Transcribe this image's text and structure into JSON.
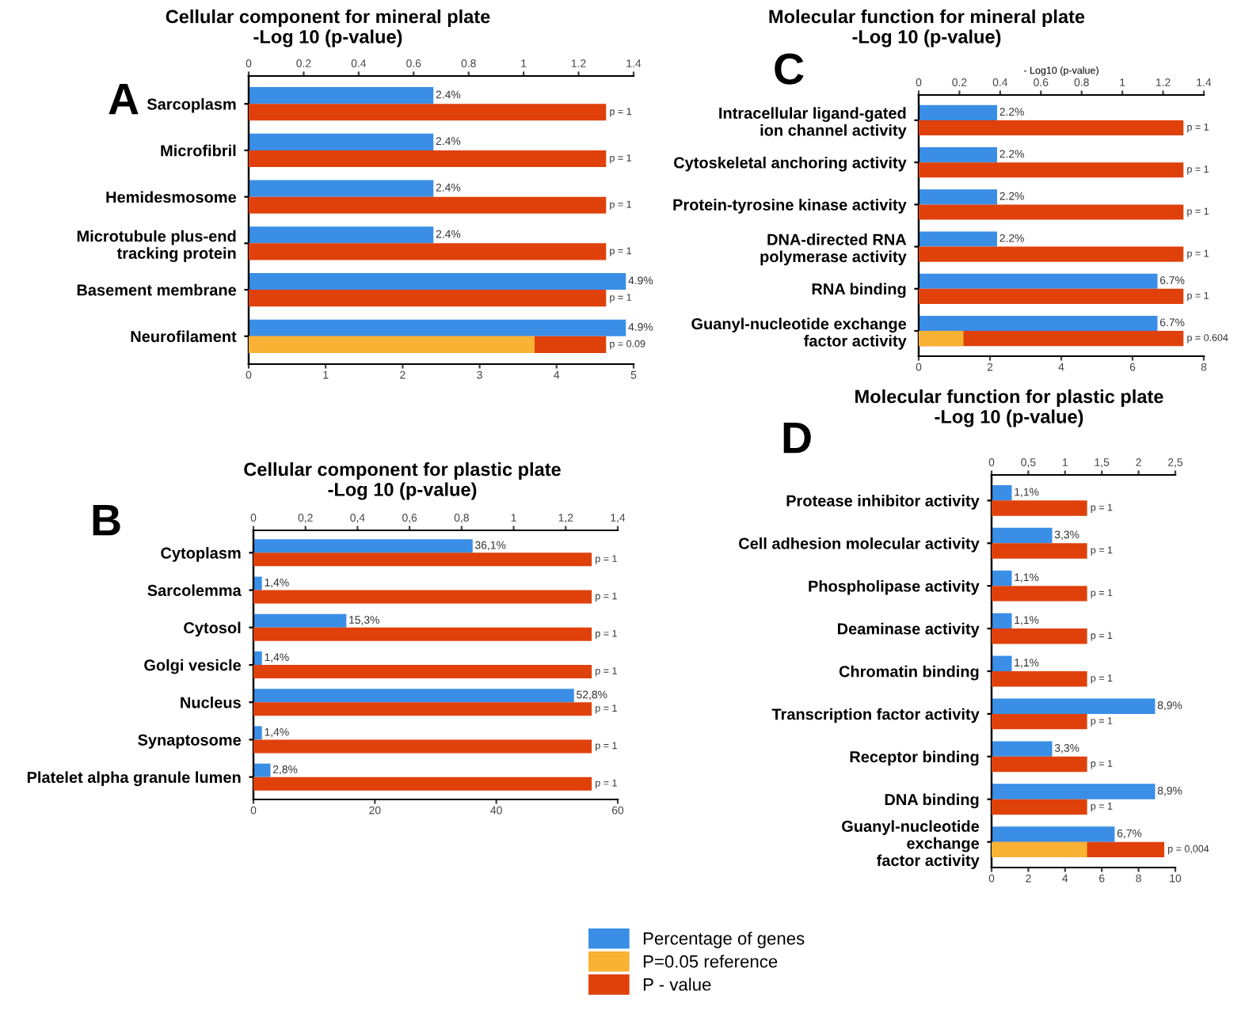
{
  "chart_data": [
    {
      "type": "bar",
      "orientation": "horizontal",
      "title": "Cellular component for mineral plate\n-Log 10 (p-value)",
      "annotations": [
        "A",
        "p = 1",
        "p = 1",
        "p = 1",
        "p = 1",
        "p = 1",
        "p = 0.09"
      ],
      "categories": [
        "Sarcoplasm",
        "Microfibril",
        "Hemidesmosome",
        "Microtubule plus-end\ntracking protein",
        "Basement membrane",
        "Neurofilament"
      ],
      "xlim": [
        0,
        5
      ],
      "xticks": [
        0,
        1,
        2,
        3,
        4,
        5
      ],
      "x2lim": [
        0,
        1.4
      ],
      "x2ticks": [
        0,
        0.2,
        0.4,
        0.6,
        0.8,
        1,
        1.2,
        1.4
      ],
      "series": [
        {
          "color": "#3a8ee6",
          "values": [
            2.4,
            2.4,
            2.4,
            2.4,
            4.9,
            4.9
          ],
          "value_labels": [
            "2.4%",
            "2.4%",
            "2.4%",
            "2.4%",
            "4.9%",
            "4.9%"
          ]
        },
        {
          "color": "#f9b233",
          "axis": "x2",
          "values": [
            null,
            null,
            null,
            null,
            null,
            1.04
          ]
        },
        {
          "color": "#e0400a",
          "axis": "x2",
          "values": [
            1.3,
            1.3,
            1.3,
            1.3,
            1.3,
            1.3
          ]
        }
      ]
    },
    {
      "type": "bar",
      "orientation": "horizontal",
      "title": "Cellular component for plastic plate\n-Log 10 (p-value)",
      "annotations": [
        "B",
        "p = 1",
        "p = 1",
        "p = 1",
        "p = 1",
        "p = 1",
        "p = 1",
        "p = 1"
      ],
      "categories": [
        "Cytoplasm",
        "Sarcolemma",
        "Cytosol",
        "Golgi vesicle",
        "Nucleus",
        "Synaptosome",
        "Platelet alpha granule lumen"
      ],
      "xlim": [
        0,
        60
      ],
      "xticks": [
        0,
        20,
        40,
        60
      ],
      "x2lim": [
        0,
        1.4
      ],
      "x2ticks": [
        0,
        {
          "value": 0.2,
          "label": "0,2"
        },
        {
          "value": 0.4,
          "label": "0,4"
        },
        {
          "value": 0.6,
          "label": "0,6"
        },
        {
          "value": 0.8,
          "label": "0,8"
        },
        1,
        {
          "value": 1.2,
          "label": "1,2"
        },
        {
          "value": 1.4,
          "label": "1,4"
        }
      ],
      "series": [
        {
          "color": "#3a8ee6",
          "values": [
            36.1,
            1.4,
            15.3,
            1.4,
            52.8,
            1.4,
            2.8
          ],
          "value_labels": [
            "36,1%",
            "1,4%",
            "15,3%",
            "1,4%",
            "52,8%",
            "1,4%",
            "2,8%"
          ]
        },
        {
          "color": "#e0400a",
          "axis": "x2",
          "values": [
            1.3,
            1.3,
            1.3,
            1.3,
            1.3,
            1.3,
            1.3
          ]
        }
      ]
    },
    {
      "type": "bar",
      "orientation": "horizontal",
      "title": "Molecular function for mineral plate\n-Log 10 (p-value)",
      "x2label": "- Log10 (p-value)",
      "annotations": [
        "C",
        "p = 1",
        "p = 1",
        "p = 1",
        "p = 1",
        "p = 1",
        "p = 0.604"
      ],
      "categories": [
        "Intracellular ligand-gated\nion channel activity",
        "Cytoskeletal anchoring activity",
        "Protein-tyrosine kinase activity",
        "DNA-directed RNA\npolymerase activity",
        "RNA binding",
        "Guanyl-nucleotide exchange\nfactor activity"
      ],
      "xlim": [
        0,
        8
      ],
      "xticks": [
        0,
        2,
        4,
        6,
        8
      ],
      "x2lim": [
        0,
        1.4
      ],
      "x2ticks": [
        0,
        0.2,
        0.4,
        0.6,
        0.8,
        1,
        1.2,
        1.4
      ],
      "series": [
        {
          "color": "#3a8ee6",
          "values": [
            2.2,
            2.2,
            2.2,
            2.2,
            6.7,
            6.7
          ],
          "value_labels": [
            "2.2%",
            "2.2%",
            "2.2%",
            "2.2%",
            "6.7%",
            "6.7%"
          ]
        },
        {
          "color": "#f9b233",
          "axis": "x2",
          "values": [
            null,
            null,
            null,
            null,
            null,
            0.22
          ]
        },
        {
          "color": "#e0400a",
          "axis": "x2",
          "values": [
            1.3,
            1.3,
            1.3,
            1.3,
            1.3,
            1.3
          ]
        }
      ]
    },
    {
      "type": "bar",
      "orientation": "horizontal",
      "title": "Molecular function for plastic plate\n-Log 10 (p-value)",
      "legend": "bottom",
      "annotations": [
        "D",
        "p = 1",
        "p = 1",
        "p = 1",
        "p = 1",
        "p = 1",
        "p = 1",
        "p = 1",
        "p = 1",
        "p = 0,004"
      ],
      "categories": [
        "Protease inhibitor activity",
        "Cell adhesion molecular activity",
        "Phospholipase activity",
        "Deaminase activity",
        "Chromatin binding",
        "Transcription factor activity",
        "Receptor binding",
        "DNA binding",
        "Guanyl-nucleotide\nexchange\nfactor activity"
      ],
      "xlim": [
        0,
        10
      ],
      "xticks": [
        0,
        2,
        4,
        6,
        8,
        10
      ],
      "x2lim": [
        0,
        2.5
      ],
      "x2ticks": [
        0,
        {
          "value": 0.5,
          "label": "0,5"
        },
        1,
        {
          "value": 1.5,
          "label": "1,5"
        },
        2,
        {
          "value": 2.5,
          "label": "2,5"
        }
      ],
      "series": [
        {
          "name": "Percentage of genes",
          "color": "#3a8ee6",
          "values": [
            1.1,
            3.3,
            1.1,
            1.1,
            1.1,
            8.9,
            3.3,
            8.9,
            6.7
          ],
          "value_labels": [
            "1,1%",
            "3,3%",
            "1,1%",
            "1,1%",
            "1,1%",
            "8,9%",
            "3,3%",
            "8,9%",
            "6,7%"
          ]
        },
        {
          "name": "P=0.05 reference",
          "color": "#f9b233",
          "axis": "x2",
          "values": [
            null,
            null,
            null,
            null,
            null,
            null,
            null,
            null,
            1.3
          ]
        },
        {
          "name": "P - value",
          "color": "#e0400a",
          "axis": "x2",
          "values": [
            1.3,
            1.3,
            1.3,
            1.3,
            1.3,
            1.3,
            1.3,
            1.3,
            2.35
          ]
        }
      ]
    }
  ]
}
